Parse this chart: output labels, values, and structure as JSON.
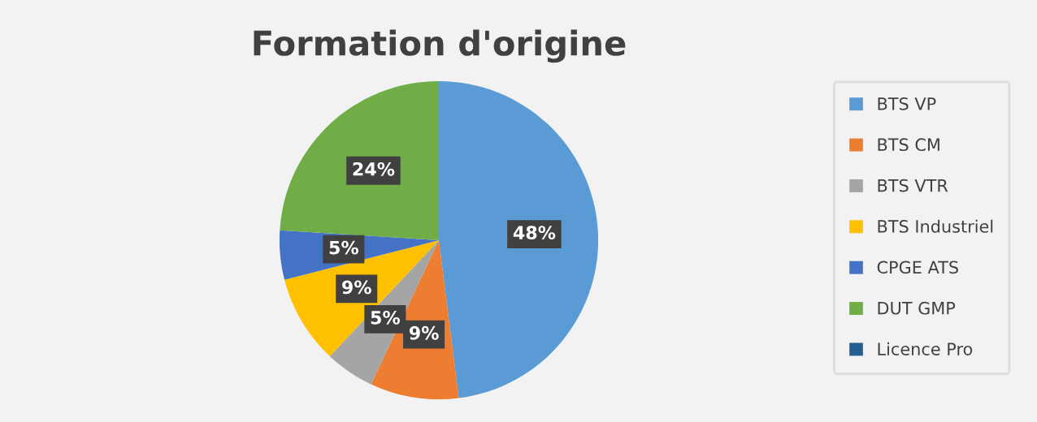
{
  "chart_data": {
    "type": "pie",
    "title": "Formation d'origine",
    "categories": [
      "BTS VP",
      "BTS CM",
      "BTS VTR",
      "BTS Industriel",
      "CPGE ATS",
      "DUT GMP",
      "Licence Pro"
    ],
    "values": [
      48,
      9,
      5,
      9,
      5,
      24,
      0
    ],
    "colors": [
      "#5b9bd5",
      "#ed7d31",
      "#a5a5a5",
      "#ffc000",
      "#4472c4",
      "#70ad47",
      "#255e91"
    ],
    "value_labels": [
      "48%",
      "9%",
      "5%",
      "9%",
      "5%",
      "24%",
      null
    ],
    "legend": "right"
  }
}
